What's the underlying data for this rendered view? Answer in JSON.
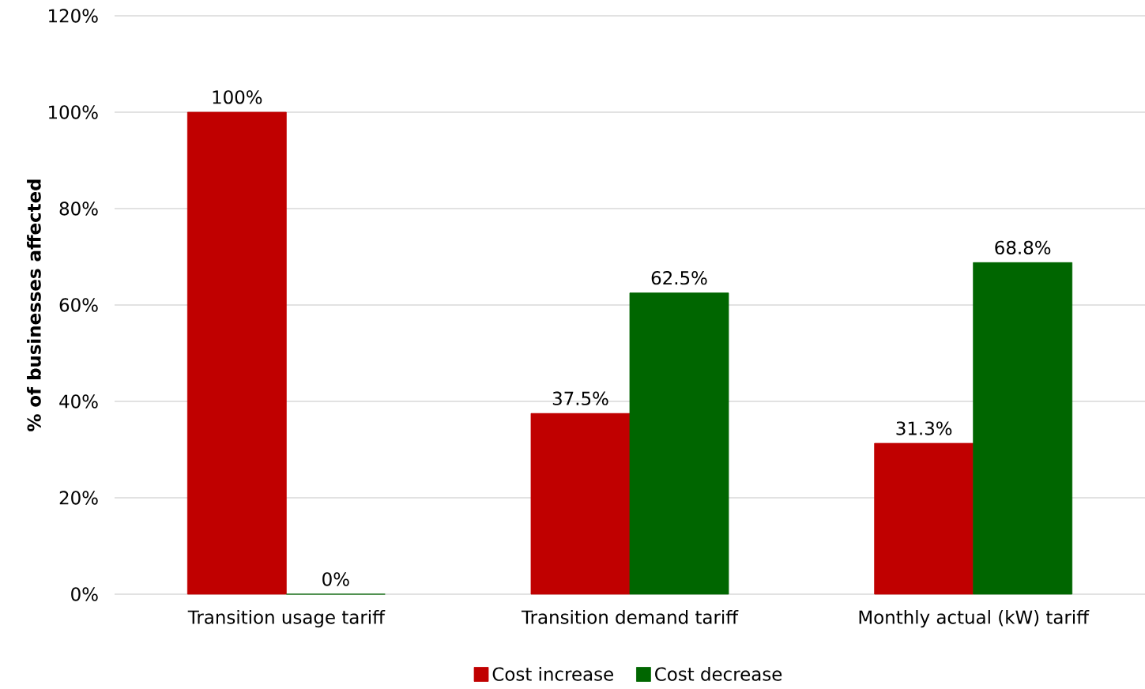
{
  "chart_data": {
    "type": "bar",
    "ylabel": "% of businesses affected",
    "categories": [
      "Transition usage tariff",
      "Transition demand tariff",
      "Monthly actual (kW) tariff"
    ],
    "series": [
      {
        "name": "Cost increase",
        "color": "#c00000",
        "values": [
          100,
          37.5,
          31.3
        ],
        "value_labels": [
          "100%",
          "37.5%",
          "31.3%"
        ]
      },
      {
        "name": "Cost decrease",
        "color": "#006600",
        "values": [
          0,
          62.5,
          68.8
        ],
        "value_labels": [
          "0%",
          "62.5%",
          "68.8%"
        ]
      }
    ],
    "ylim": [
      0,
      120
    ],
    "yticks": [
      {
        "value": 0,
        "label": "0%"
      },
      {
        "value": 20,
        "label": "20%"
      },
      {
        "value": 40,
        "label": "40%"
      },
      {
        "value": 60,
        "label": "60%"
      },
      {
        "value": 80,
        "label": "80%"
      },
      {
        "value": 100,
        "label": "100%"
      },
      {
        "value": 120,
        "label": "120%"
      }
    ],
    "grid": "y",
    "legend": "bottom"
  }
}
